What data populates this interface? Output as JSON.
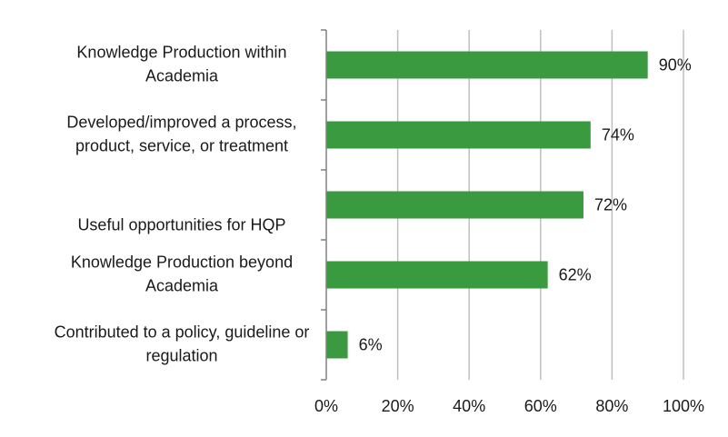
{
  "chart_data": {
    "type": "bar",
    "orientation": "horizontal",
    "categories": [
      [
        "Knowledge Production within",
        "Academia"
      ],
      [
        "Developed/improved a process,",
        "product, service, or treatment"
      ],
      [
        "Useful opportunities for HQP"
      ],
      [
        "Knowledge Production beyond",
        "Academia"
      ],
      [
        "Contributed to a policy, guideline or",
        "regulation"
      ]
    ],
    "values": [
      90,
      74,
      72,
      62,
      6
    ],
    "data_labels": [
      "90%",
      "74%",
      "72%",
      "62%",
      "6%"
    ],
    "x_ticks": [
      "0%",
      "20%",
      "40%",
      "60%",
      "80%",
      "100%"
    ],
    "xlim": [
      0,
      100
    ],
    "grid": true,
    "legend": "none",
    "bar_color": "#3a9a40",
    "grid_color": "#bfbfbf",
    "axis_color": "#808080",
    "title": "",
    "xlabel": "",
    "ylabel": ""
  }
}
